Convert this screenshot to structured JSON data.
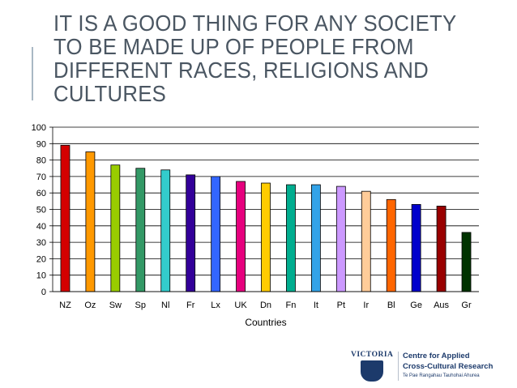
{
  "slide": {
    "title": "IT IS A GOOD THING FOR ANY SOCIETY TO BE MADE UP OF PEOPLE FROM DIFFERENT RACES, RELIGIONS AND CULTURES"
  },
  "logo": {
    "institution": "VICTORIA",
    "centre_line1": "Centre for Applied",
    "centre_line2": "Cross-Cultural Research",
    "centre_sub": "Te Pae Rangahau Tauhohai Ahurea"
  },
  "colors": {
    "gridline": "#000000",
    "title": "#4a5662"
  },
  "chart_data": {
    "type": "bar",
    "title": "",
    "xlabel": "Countries",
    "ylabel": "",
    "ylim": [
      0,
      100
    ],
    "yticks": [
      0,
      10,
      20,
      30,
      40,
      50,
      60,
      70,
      80,
      90,
      100
    ],
    "grid": true,
    "categories": [
      "NZ",
      "Oz",
      "Sw",
      "Sp",
      "Nl",
      "Fr",
      "Lx",
      "UK",
      "Dn",
      "Fn",
      "It",
      "Pt",
      "Ir",
      "Bl",
      "Ge",
      "Aus",
      "Gr"
    ],
    "values": [
      89,
      85,
      77,
      75,
      74,
      71,
      70,
      67,
      66,
      65,
      65,
      64,
      61,
      56,
      53,
      52,
      36
    ],
    "bar_colors": [
      "#d40000",
      "#ff9900",
      "#99cc00",
      "#339966",
      "#33cccc",
      "#330099",
      "#3366ff",
      "#e6007e",
      "#ffcc00",
      "#00ad8f",
      "#33a3e8",
      "#cc99ff",
      "#ffcc99",
      "#ff6600",
      "#0000cc",
      "#990000",
      "#003300"
    ]
  }
}
